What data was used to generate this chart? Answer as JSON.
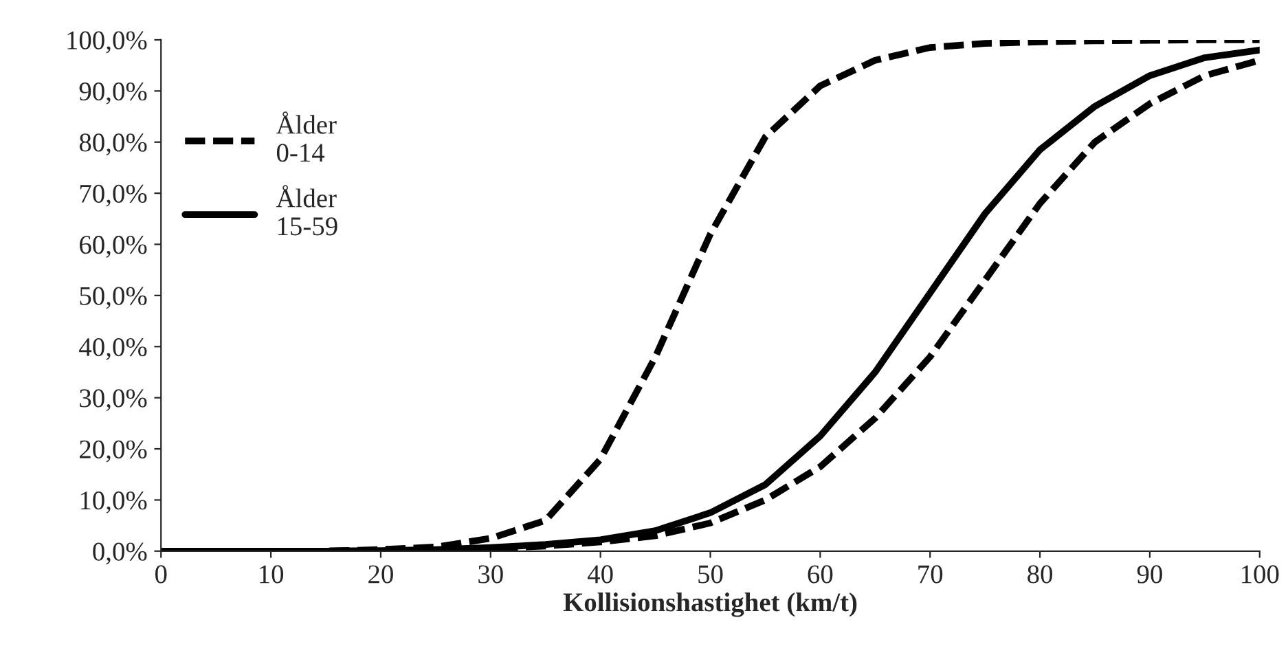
{
  "chart_data": {
    "type": "line",
    "xlabel": "Kollisionshastighet (km/t)",
    "x": [
      0,
      5,
      10,
      15,
      20,
      25,
      30,
      35,
      40,
      45,
      50,
      55,
      60,
      65,
      70,
      75,
      80,
      85,
      90,
      95,
      100
    ],
    "series": [
      {
        "name": "Ålder\n0-14",
        "color": "#000000",
        "line_style": "dashed",
        "values": [
          0,
          0,
          0,
          0,
          0.3,
          0.8,
          2.5,
          6,
          18,
          38,
          62,
          81,
          91,
          96,
          98.5,
          99.3,
          99.6,
          99.8,
          99.9,
          100,
          100
        ]
      },
      {
        "name": "Ålder\n15-59",
        "color": "#000000",
        "line_style": "solid",
        "values": [
          0,
          0,
          0,
          0,
          0.1,
          0.3,
          0.7,
          1.3,
          2.2,
          4,
          7.5,
          13,
          22.5,
          35,
          50.5,
          66,
          78.5,
          87,
          93,
          96.5,
          98
        ]
      },
      {
        "color": "#000000",
        "line_style": "dashed",
        "values": [
          0,
          0,
          0,
          0,
          0.1,
          0.2,
          0.5,
          1,
          1.8,
          3,
          5.5,
          10,
          16.5,
          26,
          38,
          53,
          68,
          80,
          87.5,
          93,
          96
        ]
      }
    ],
    "xlim": [
      0,
      100
    ],
    "xticks": [
      0,
      10,
      20,
      30,
      40,
      50,
      60,
      70,
      80,
      90,
      100
    ],
    "ylim": [
      0,
      100
    ],
    "yticks": [
      {
        "value": 0,
        "label": "0,0%"
      },
      {
        "value": 10,
        "label": "10,0%"
      },
      {
        "value": 20,
        "label": "20,0%"
      },
      {
        "value": 30,
        "label": "30,0%"
      },
      {
        "value": 40,
        "label": "40,0%"
      },
      {
        "value": 50,
        "label": "50,0%"
      },
      {
        "value": 60,
        "label": "60,0%"
      },
      {
        "value": 70,
        "label": "70,0%"
      },
      {
        "value": 80,
        "label": "80,0%"
      },
      {
        "value": 90,
        "label": "90,0%"
      },
      {
        "value": 100,
        "label": "100,0%"
      }
    ],
    "grid": false,
    "legend": "top left",
    "marker": "none"
  }
}
